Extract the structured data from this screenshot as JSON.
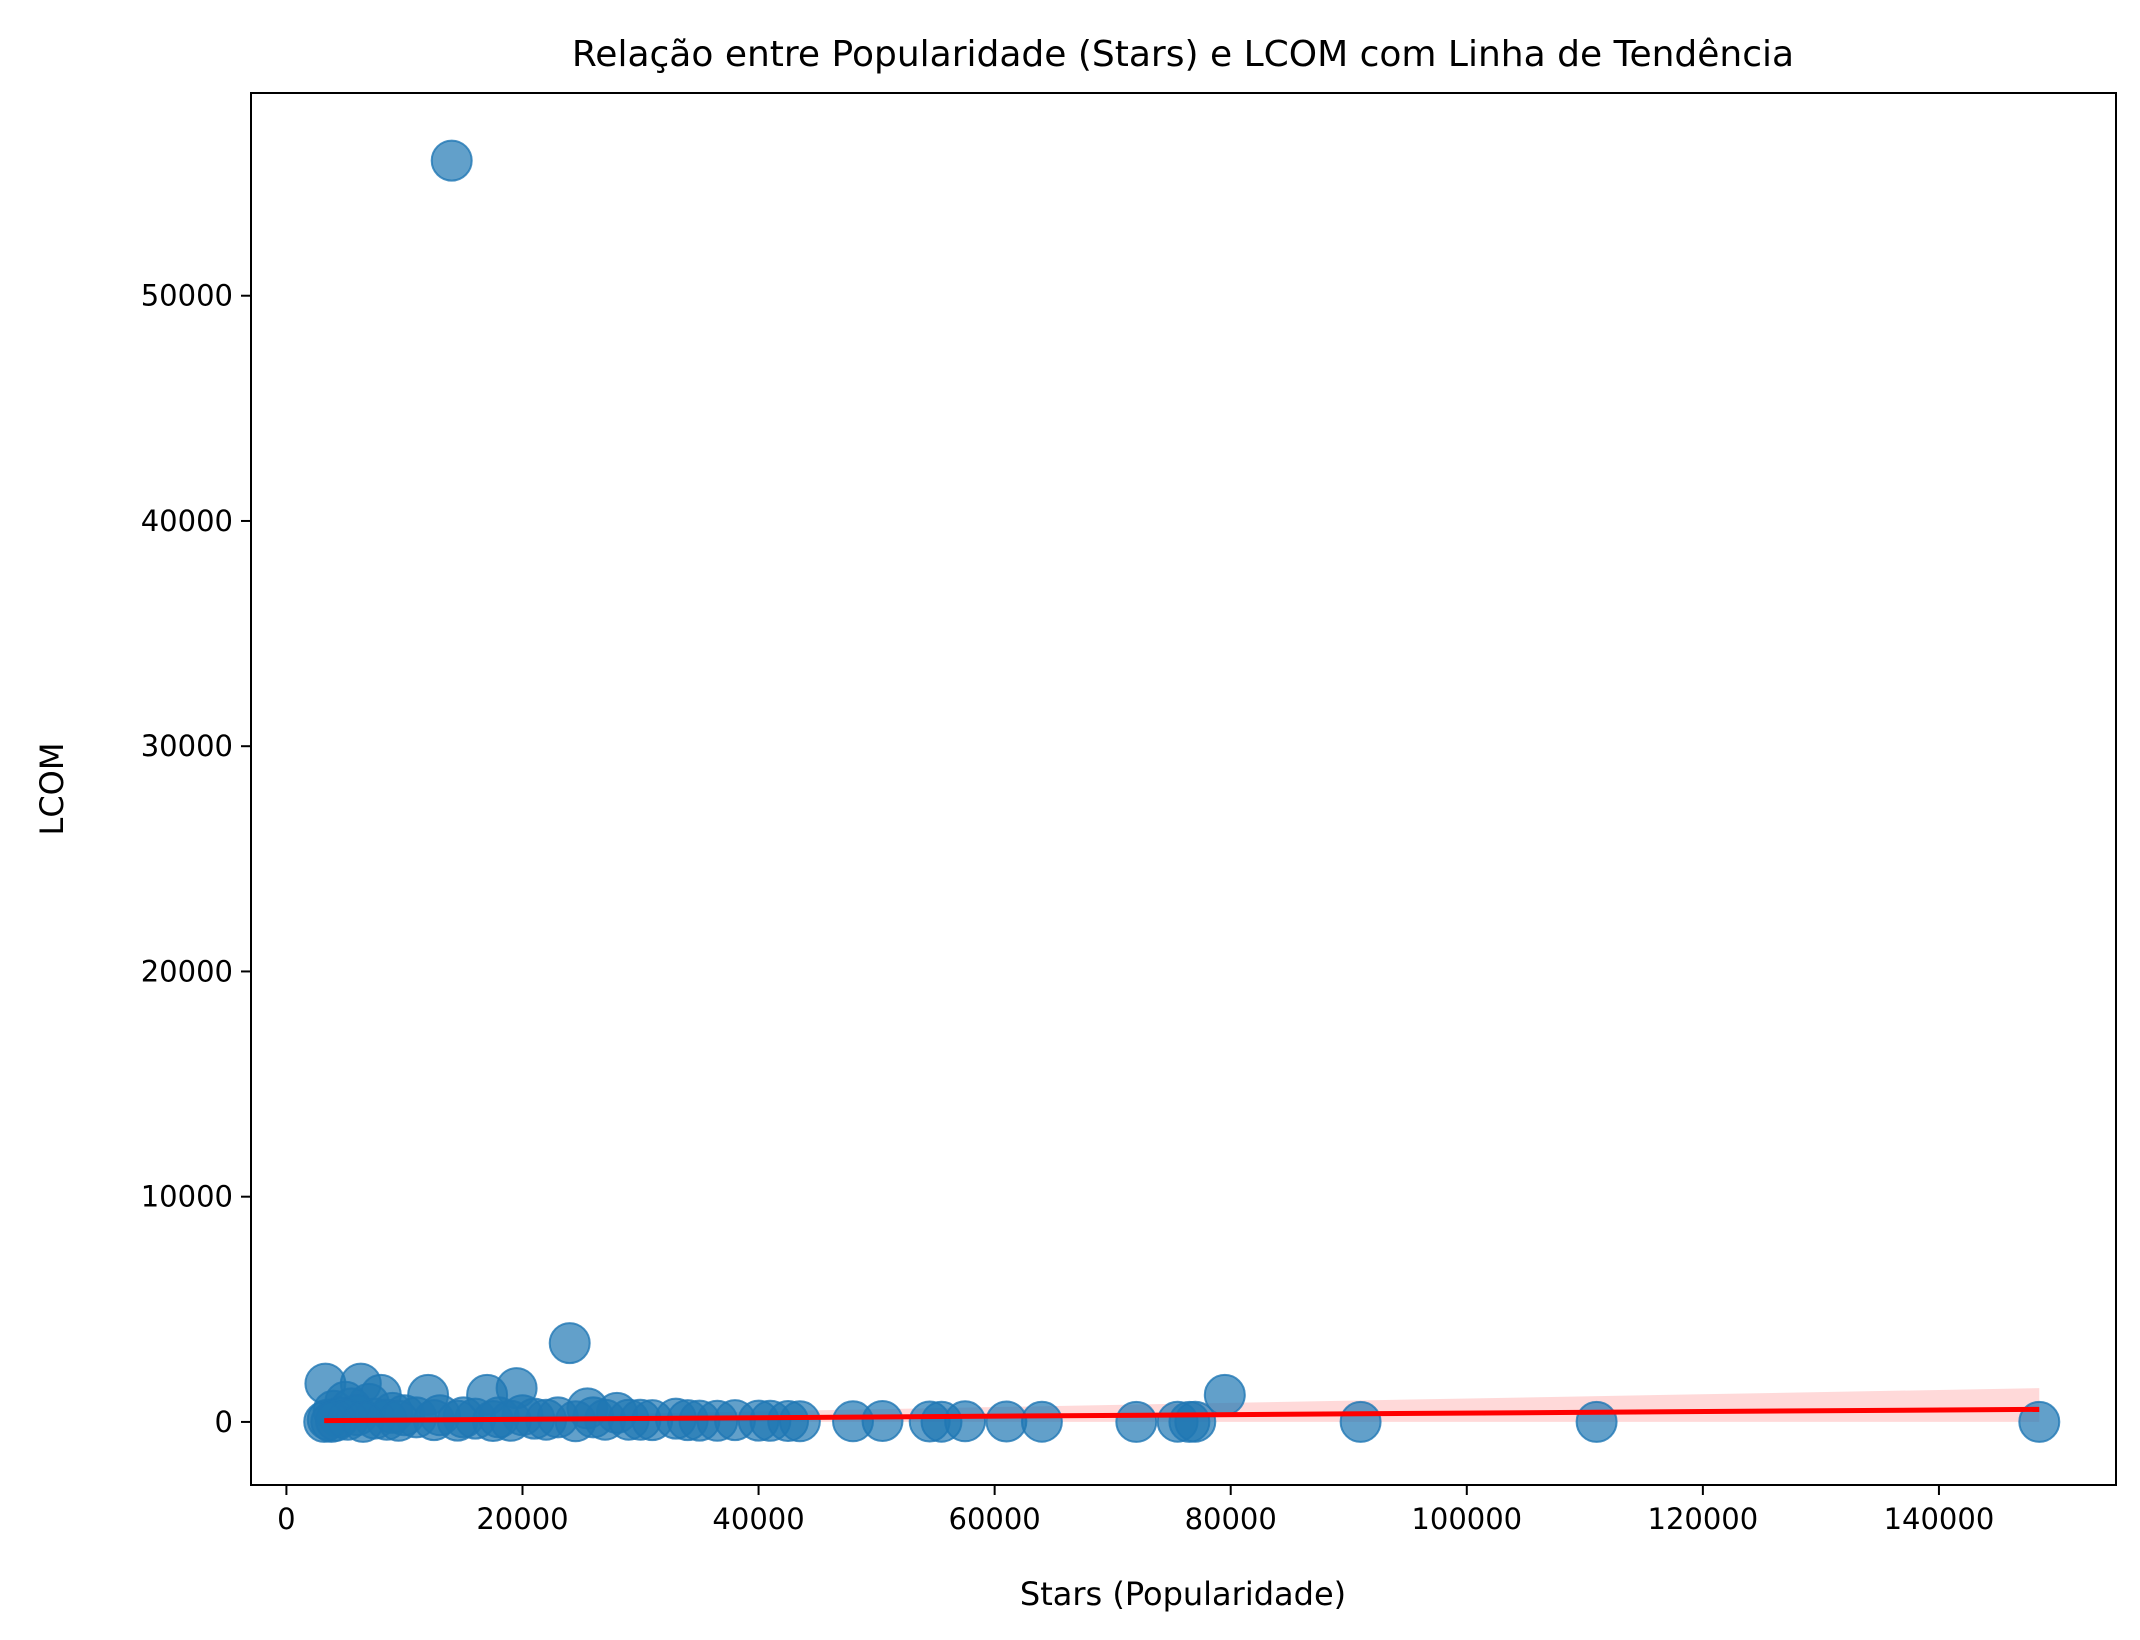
{
  "chart_data": {
    "type": "scatter",
    "title": "Relação entre Popularidade (Stars) e LCOM com Linha de Tendência",
    "xlabel": "Stars (Popularidade)",
    "ylabel": "LCOM",
    "xlim": [
      -3000,
      155000
    ],
    "ylim": [
      -2800,
      59000
    ],
    "xticks": [
      0,
      20000,
      40000,
      60000,
      80000,
      100000,
      120000,
      140000
    ],
    "yticks": [
      0,
      10000,
      20000,
      30000,
      40000,
      50000
    ],
    "grid": false,
    "legend": "none",
    "colors": {
      "points": "#1f77b4",
      "trend": "#ff0000",
      "band": "#ff0000"
    },
    "series": [
      {
        "values": [
          [
            14000,
            56000
          ],
          [
            24000,
            3500
          ],
          [
            3300,
            1700
          ],
          [
            6300,
            1700
          ],
          [
            19500,
            1500
          ],
          [
            17000,
            1200
          ],
          [
            8000,
            1200
          ],
          [
            12000,
            1200
          ],
          [
            79500,
            1200
          ],
          [
            5000,
            900
          ],
          [
            7000,
            800
          ],
          [
            25500,
            600
          ],
          [
            28000,
            400
          ],
          [
            4000,
            500
          ],
          [
            5500,
            600
          ],
          [
            9000,
            400
          ],
          [
            10000,
            300
          ],
          [
            11000,
            200
          ],
          [
            13000,
            300
          ],
          [
            15000,
            200
          ],
          [
            16000,
            150
          ],
          [
            18000,
            200
          ],
          [
            20000,
            300
          ],
          [
            21000,
            150
          ],
          [
            22000,
            100
          ],
          [
            23000,
            200
          ],
          [
            26000,
            200
          ],
          [
            27000,
            100
          ],
          [
            29000,
            100
          ],
          [
            30000,
            100
          ],
          [
            31000,
            80
          ],
          [
            33000,
            150
          ],
          [
            34000,
            80
          ],
          [
            35000,
            60
          ],
          [
            36500,
            50
          ],
          [
            38000,
            80
          ],
          [
            40000,
            60
          ],
          [
            41000,
            50
          ],
          [
            42500,
            40
          ],
          [
            43500,
            30
          ],
          [
            48000,
            30
          ],
          [
            50500,
            40
          ],
          [
            54500,
            20
          ],
          [
            55500,
            10
          ],
          [
            57500,
            30
          ],
          [
            61000,
            20
          ],
          [
            64000,
            10
          ],
          [
            72000,
            0
          ],
          [
            75500,
            10
          ],
          [
            76500,
            0
          ],
          [
            77000,
            10
          ],
          [
            91000,
            0
          ],
          [
            111000,
            0
          ],
          [
            148500,
            0
          ],
          [
            3500,
            100
          ],
          [
            4500,
            200
          ],
          [
            6000,
            300
          ],
          [
            7500,
            150
          ],
          [
            8500,
            100
          ],
          [
            9500,
            50
          ],
          [
            12500,
            80
          ],
          [
            14500,
            60
          ],
          [
            17500,
            40
          ],
          [
            19000,
            50
          ],
          [
            24500,
            30
          ],
          [
            3200,
            0
          ],
          [
            3800,
            0
          ],
          [
            4200,
            50
          ],
          [
            5200,
            100
          ],
          [
            6500,
            0
          ]
        ]
      }
    ],
    "trend": {
      "x": [
        3200,
        148500
      ],
      "y": [
        60,
        560
      ],
      "ci_upper_end": 1500,
      "ci_lower_end": 0
    }
  }
}
